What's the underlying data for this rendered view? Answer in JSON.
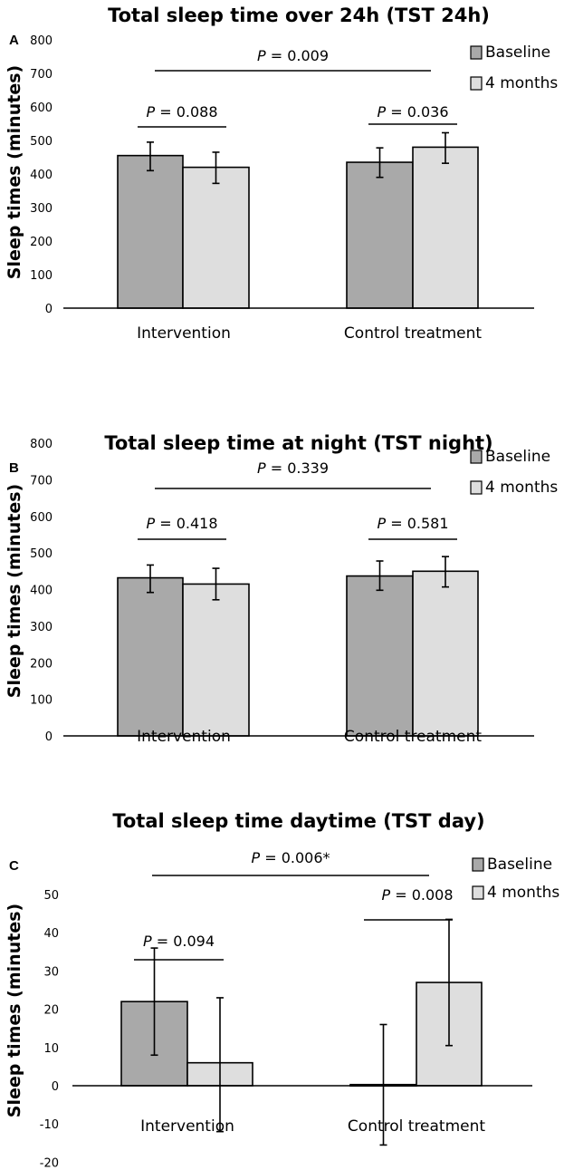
{
  "chart_data": [
    {
      "type": "bar",
      "panel_label": "A",
      "title": "Total sleep time over 24h (TST 24h)",
      "ylabel": "Sleep times (minutes)",
      "xlabel": "",
      "ylim": [
        0,
        800
      ],
      "yticks": [
        0,
        100,
        200,
        300,
        400,
        500,
        600,
        700,
        800
      ],
      "categories": [
        "Intervention",
        "Control treatment"
      ],
      "series": [
        {
          "name": "Baseline",
          "values": [
            455,
            435
          ],
          "err_low": [
            410,
            390
          ],
          "err_high": [
            495,
            478
          ]
        },
        {
          "name": "4 months",
          "values": [
            420,
            480
          ],
          "err_low": [
            372,
            432
          ],
          "err_high": [
            465,
            523
          ]
        }
      ],
      "annotations": {
        "overall": "= 0.009",
        "intervention": "= 0.088",
        "control": "= 0.036"
      },
      "legend_position": "top-right",
      "grid": false
    },
    {
      "type": "bar",
      "panel_label": "B",
      "title": "Total sleep time at night (TST night)",
      "ylabel": "Sleep times (minutes)",
      "xlabel": "",
      "ylim": [
        0,
        800
      ],
      "yticks": [
        0,
        100,
        200,
        300,
        400,
        500,
        600,
        700,
        800
      ],
      "categories": [
        "Intervention",
        "Control treatment"
      ],
      "series": [
        {
          "name": "Baseline",
          "values": [
            432,
            437
          ],
          "err_low": [
            392,
            398
          ],
          "err_high": [
            467,
            478
          ]
        },
        {
          "name": "4 months",
          "values": [
            415,
            450
          ],
          "err_low": [
            372,
            407
          ],
          "err_high": [
            458,
            490
          ]
        }
      ],
      "annotations": {
        "overall": "= 0.339",
        "intervention": "= 0.418",
        "control": "= 0.581"
      },
      "legend_position": "top-right",
      "grid": false
    },
    {
      "type": "bar",
      "panel_label": "C",
      "title": "Total sleep time daytime (TST day)",
      "ylabel": "Sleep times (minutes)",
      "xlabel": "",
      "ylim": [
        -20,
        50
      ],
      "yticks": [
        -20,
        -10,
        0,
        10,
        20,
        30,
        40,
        50
      ],
      "categories": [
        "Intervention",
        "Control treatment"
      ],
      "series": [
        {
          "name": "Baseline",
          "values": [
            22,
            0.3
          ],
          "err_low": [
            8,
            -15.5
          ],
          "err_high": [
            36,
            16
          ]
        },
        {
          "name": "4 months",
          "values": [
            6,
            27
          ],
          "err_low": [
            -12,
            10.5
          ],
          "err_high": [
            23,
            43.5
          ]
        }
      ],
      "annotations": {
        "overall": "= 0.006*",
        "intervention": "= 0.094",
        "control": "= 0.008"
      },
      "legend_position": "top-right",
      "grid": false
    }
  ],
  "p_symbol": "P",
  "colors": {
    "baseline": "#a9a9a9",
    "four_months": "#dedede",
    "outline": "#000000"
  }
}
